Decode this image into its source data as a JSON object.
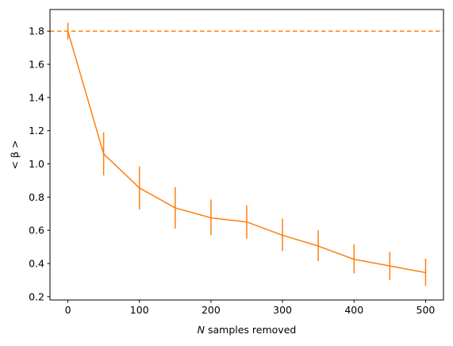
{
  "chart_data": {
    "type": "line",
    "xlabel_italic": "N",
    "xlabel_rest": " samples removed",
    "ylabel": "< β >",
    "xlim": [
      -25,
      525
    ],
    "ylim": [
      0.18,
      1.93
    ],
    "xticks": [
      0,
      100,
      200,
      300,
      400,
      500
    ],
    "yticks": [
      0.2,
      0.4,
      0.6,
      0.8,
      1.0,
      1.2,
      1.4,
      1.6,
      1.8
    ],
    "ytick_labels": [
      "0.2",
      "0.4",
      "0.6",
      "0.8",
      "1.0",
      "1.2",
      "1.4",
      "1.6",
      "1.8"
    ],
    "grid": false,
    "reference_line": {
      "y": 1.8,
      "style": "dashed",
      "color": "#ff7f0e"
    },
    "series": [
      {
        "color": "#ff7f0e",
        "x": [
          0,
          50,
          100,
          150,
          200,
          250,
          300,
          350,
          400,
          450,
          500
        ],
        "y": [
          1.8,
          1.06,
          0.855,
          0.735,
          0.675,
          0.65,
          0.57,
          0.505,
          0.425,
          0.385,
          0.345
        ],
        "yerr_low": [
          1.75,
          0.93,
          0.725,
          0.61,
          0.57,
          0.55,
          0.475,
          0.415,
          0.34,
          0.3,
          0.265
        ],
        "yerr_high": [
          1.85,
          1.19,
          0.985,
          0.86,
          0.785,
          0.75,
          0.67,
          0.6,
          0.515,
          0.47,
          0.43
        ]
      }
    ]
  }
}
